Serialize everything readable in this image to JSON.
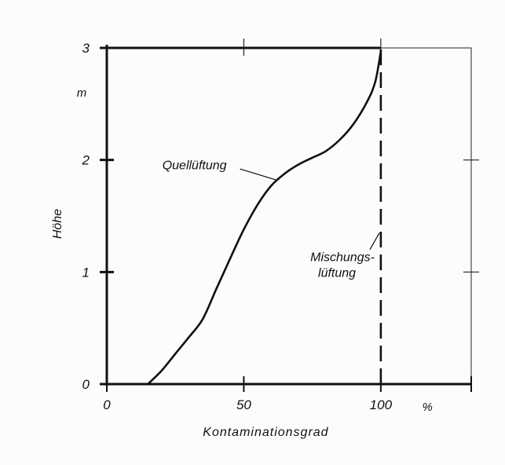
{
  "chart_data": {
    "type": "line",
    "title": "",
    "xlabel": "Kontaminationsgrad",
    "ylabel": "Höhe",
    "x_unit": "%",
    "y_unit": "m",
    "xlim": [
      0,
      133
    ],
    "ylim": [
      0,
      3
    ],
    "x_ticks": [
      {
        "value": 0,
        "label": "0"
      },
      {
        "value": 50,
        "label": "50"
      },
      {
        "value": 100,
        "label": "100"
      }
    ],
    "y_ticks": [
      {
        "value": 0,
        "label": "0"
      },
      {
        "value": 1,
        "label": "1"
      },
      {
        "value": 2,
        "label": "2"
      },
      {
        "value": 3,
        "label": "3"
      }
    ],
    "grid": false,
    "series": [
      {
        "name": "Quellüftung",
        "style": "solid",
        "x": [
          15,
          20,
          25,
          30,
          35,
          40,
          45,
          50,
          55,
          60,
          65,
          70,
          75,
          80,
          85,
          90,
          95,
          98,
          100
        ],
        "y": [
          0,
          0.12,
          0.27,
          0.42,
          0.58,
          0.85,
          1.12,
          1.38,
          1.6,
          1.77,
          1.88,
          1.96,
          2.02,
          2.08,
          2.18,
          2.32,
          2.52,
          2.7,
          2.97
        ]
      },
      {
        "name": "Mischungslüftung",
        "name_lines": [
          "Mischungs-",
          "lüftung"
        ],
        "style": "dashed",
        "x": [
          100,
          100
        ],
        "y": [
          0,
          3
        ]
      }
    ]
  }
}
